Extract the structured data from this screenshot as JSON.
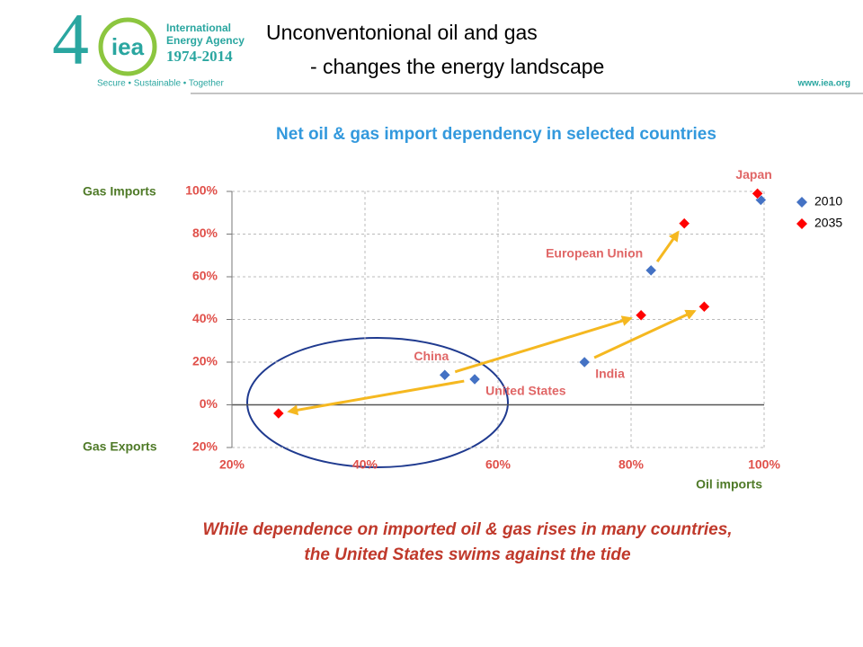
{
  "slide": {
    "heading": [
      "Unconventonional oil and gas",
      "- changes the energy landscape"
    ],
    "logo": {
      "number": "4",
      "mark": "iea",
      "name": [
        "International",
        "Energy Agency"
      ],
      "years": "1974-2014",
      "motto": "Secure • Sustainable • Together"
    },
    "url": "www.iea.org",
    "caption": [
      "While dependence on imported oil & gas rises in many countries,",
      "the United States swims against the tide"
    ]
  },
  "chart_data": {
    "type": "scatter",
    "title": "Net oil & gas import dependency in selected countries",
    "y_label_top": "Gas Imports",
    "y_label_bottom": "Gas Exports",
    "x_label": "Oil imports",
    "categories": [
      "China",
      "United States",
      "India",
      "European Union",
      "Japan"
    ],
    "series": [
      {
        "name": "2010",
        "color": "#4472c4",
        "x": [
          52,
          56.5,
          73,
          83,
          99.5
        ],
        "values": [
          14,
          12,
          20,
          63,
          96
        ]
      },
      {
        "name": "2035",
        "color": "#ff0000",
        "x": [
          81.5,
          27,
          91,
          88,
          99
        ],
        "values": [
          42,
          -4,
          46,
          85,
          99
        ]
      }
    ],
    "xlim": [
      20,
      100
    ],
    "xticks": [
      {
        "value": 20,
        "label": "20%"
      },
      {
        "value": 40,
        "label": "40%"
      },
      {
        "value": 60,
        "label": "60%"
      },
      {
        "value": 80,
        "label": "80%"
      },
      {
        "value": 100,
        "label": "100%"
      }
    ],
    "ylim": [
      -20,
      100
    ],
    "yticks": [
      {
        "value": -20,
        "label": "20%"
      },
      {
        "value": 0,
        "label": "0%"
      },
      {
        "value": 20,
        "label": "20%"
      },
      {
        "value": 40,
        "label": "40%"
      },
      {
        "value": 60,
        "label": "60%"
      },
      {
        "value": 80,
        "label": "80%"
      },
      {
        "value": 100,
        "label": "100%"
      }
    ],
    "grid": true,
    "legend": "right"
  }
}
